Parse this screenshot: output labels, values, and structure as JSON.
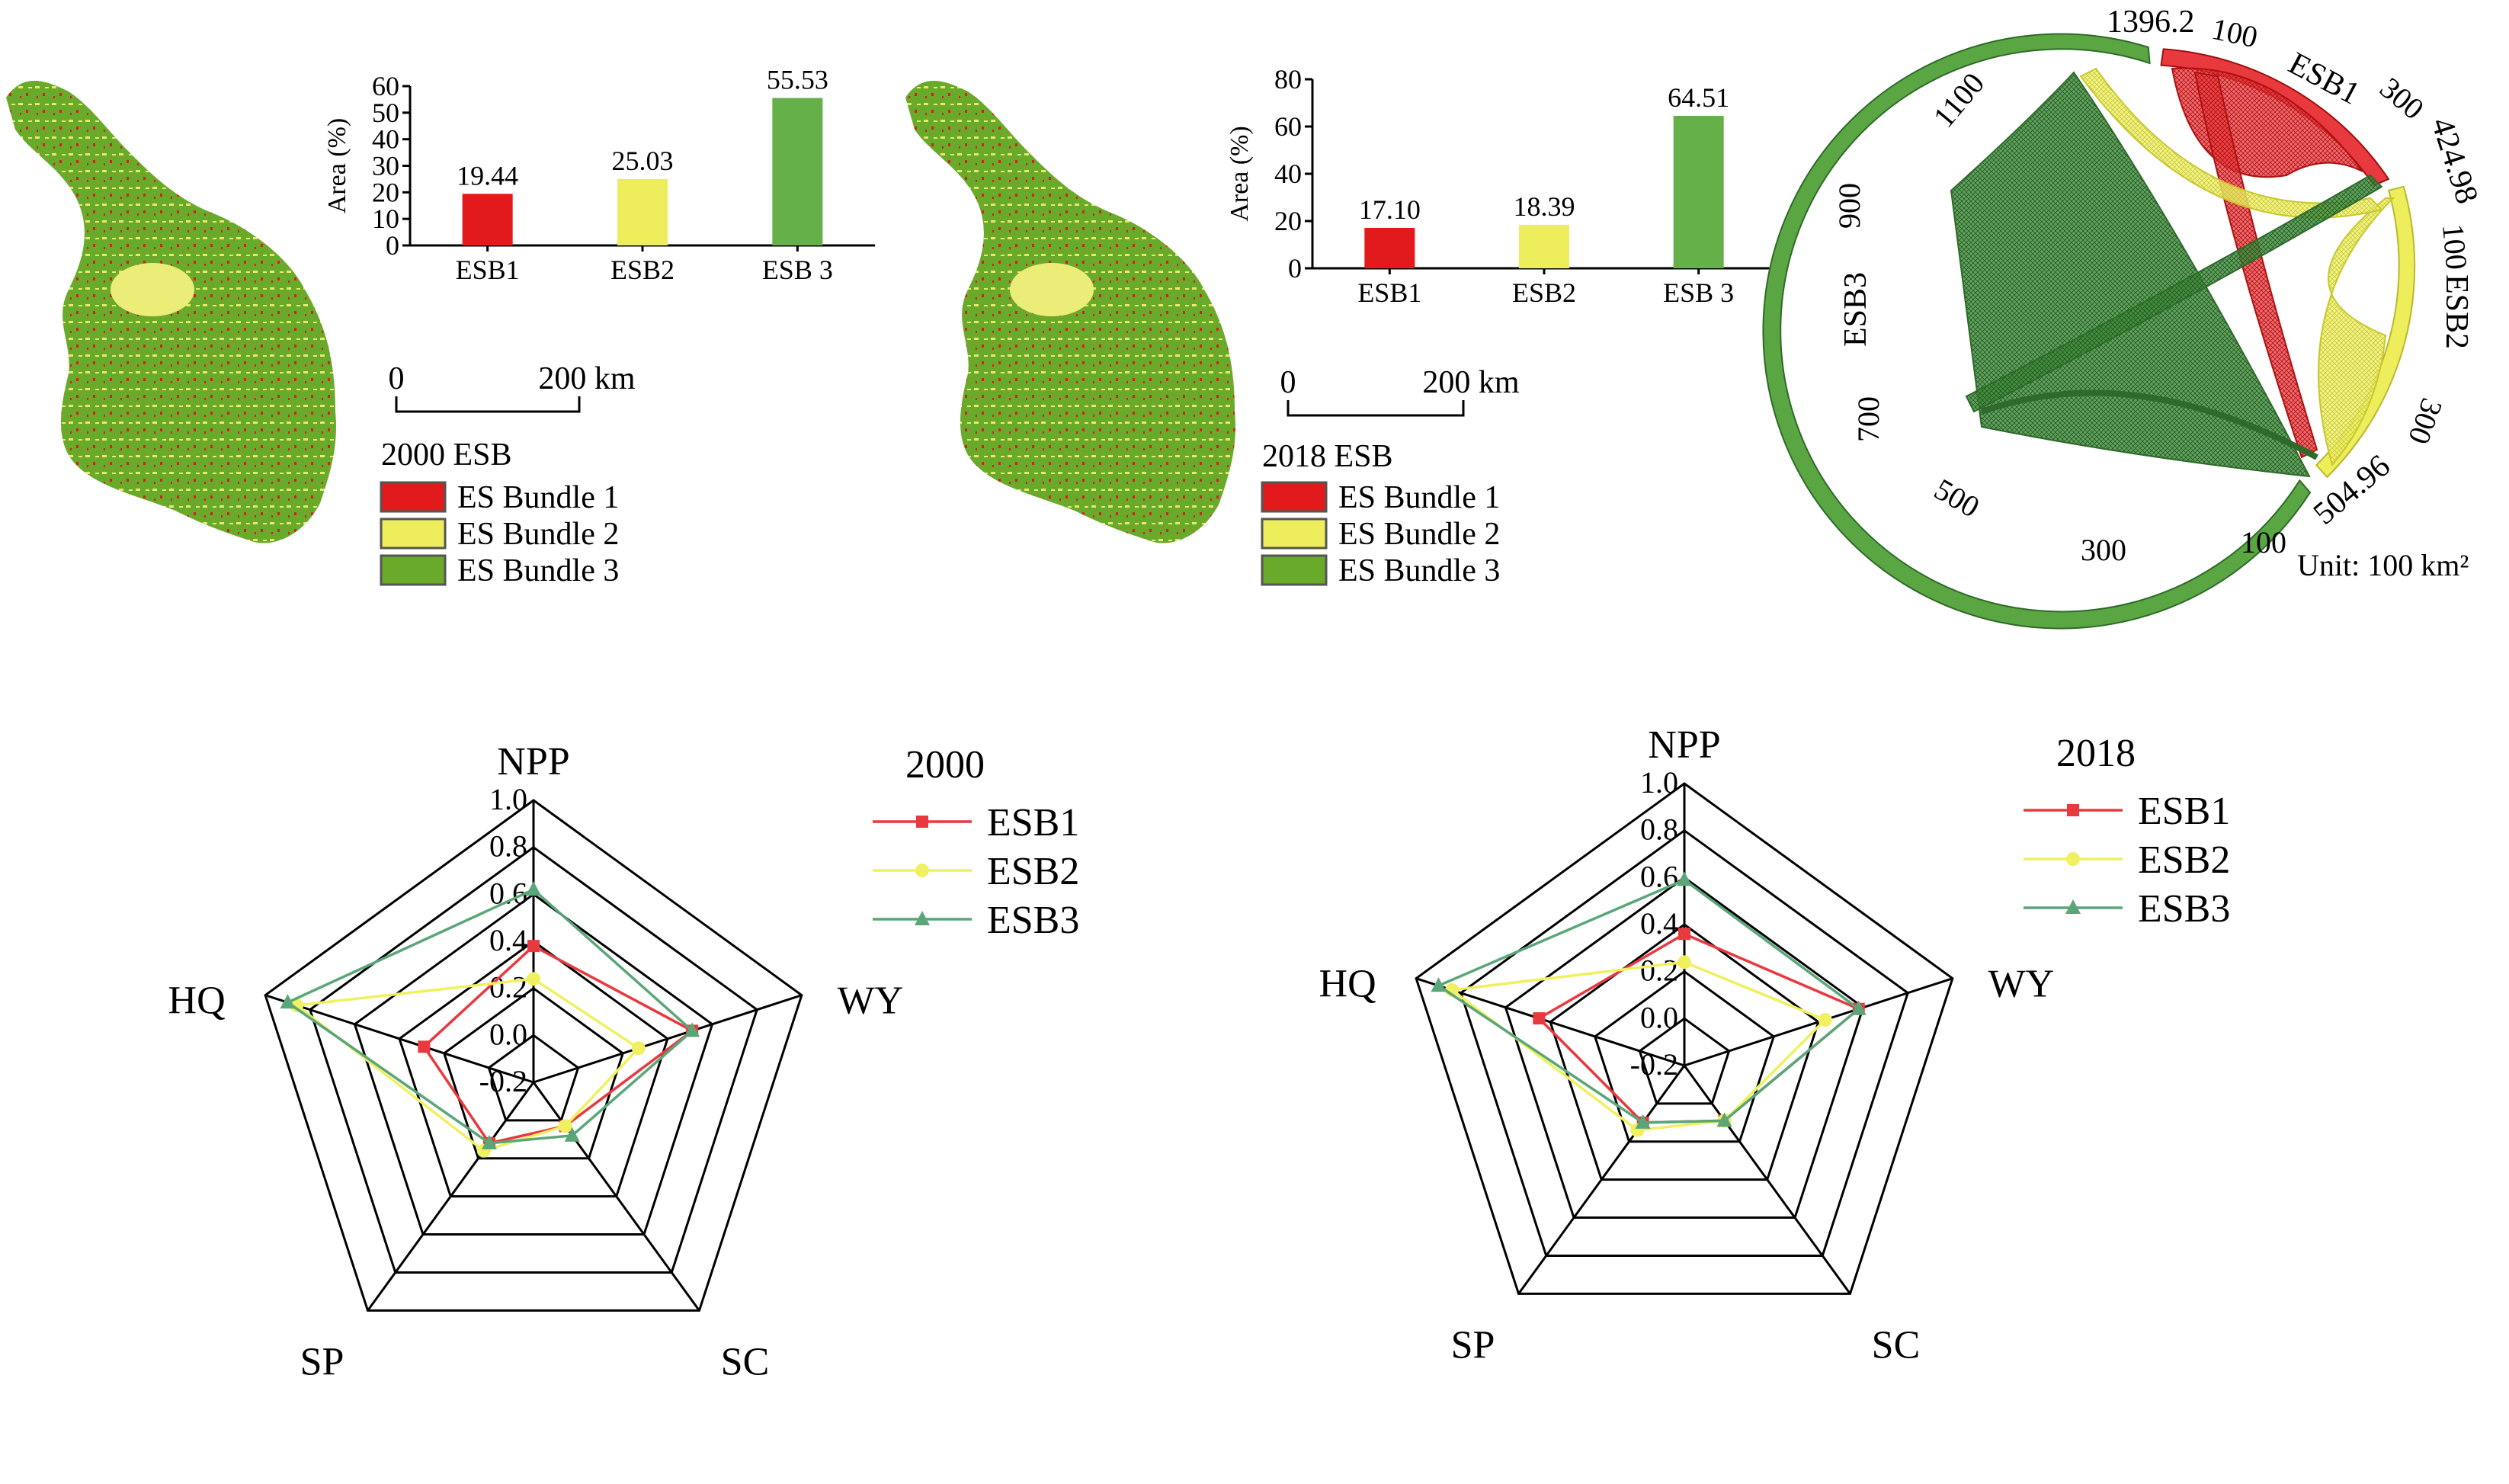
{
  "colors": {
    "esb1": "#e31a1c",
    "esb2": "#eeee5c",
    "esb3": "#66b04a",
    "map_green": "#6aaa2a",
    "radar_esb1": "#e8393f",
    "radar_esb2": "#f0f060",
    "radar_esb3": "#5aa678"
  },
  "maps": [
    {
      "year_label": "2000 ESB",
      "legend": [
        "ES Bundle 1",
        "ES Bundle 2",
        "ES Bundle 3"
      ],
      "scalebar": {
        "start": "0",
        "end": "200 km"
      }
    },
    {
      "year_label": "2018 ESB",
      "legend": [
        "ES Bundle 1",
        "ES Bundle 2",
        "ES Bundle 3"
      ],
      "scalebar": {
        "start": "0",
        "end": "200 km"
      }
    }
  ],
  "chord": {
    "unit": "Unit: 100 km²",
    "groups": [
      {
        "name": "ESB1",
        "total_label": "424.98",
        "ticks": [
          "100",
          "300"
        ]
      },
      {
        "name": "ESB2",
        "total_label": "504.96",
        "ticks": [
          "100",
          "300"
        ]
      },
      {
        "name": "ESB3",
        "total_label": "1396.2",
        "ticks": [
          "100",
          "300",
          "500",
          "700",
          "900",
          "1100"
        ]
      }
    ]
  },
  "chart_data": [
    {
      "type": "bar",
      "categories": [
        "ESB1",
        "ESB2",
        "ESB 3"
      ],
      "values": [
        19.44,
        25.03,
        55.53
      ],
      "value_labels": [
        "19.44",
        "25.03",
        "55.53"
      ],
      "ylabel": "Area (%)",
      "ylim": [
        0,
        60
      ],
      "yticks": [
        0,
        10,
        20,
        30,
        40,
        50,
        60
      ]
    },
    {
      "type": "bar",
      "categories": [
        "ESB1",
        "ESB2",
        "ESB 3"
      ],
      "values": [
        17.1,
        18.39,
        64.51
      ],
      "value_labels": [
        "17.10",
        "18.39",
        "64.51"
      ],
      "ylabel": "Area (%)",
      "ylim": [
        0,
        80
      ],
      "yticks": [
        0,
        20,
        40,
        60,
        80
      ]
    },
    {
      "type": "radar",
      "legend_title": "2000",
      "axes": [
        "NPP",
        "WY",
        "SC",
        "SP",
        "HQ"
      ],
      "rlim": [
        -0.2,
        1.0
      ],
      "rticks": [
        "-0.2",
        "0.0",
        "0.2",
        "0.4",
        "0.6",
        "0.8",
        "1.0"
      ],
      "series": [
        {
          "name": "ESB1",
          "values": [
            0.38,
            0.51,
            0.03,
            0.12,
            0.29
          ]
        },
        {
          "name": "ESB2",
          "values": [
            0.24,
            0.27,
            0.03,
            0.16,
            0.86
          ]
        },
        {
          "name": "ESB3",
          "values": [
            0.62,
            0.51,
            0.08,
            0.12,
            0.9
          ]
        }
      ]
    },
    {
      "type": "radar",
      "legend_title": "2018",
      "axes": [
        "NPP",
        "WY",
        "SC",
        "SP",
        "HQ"
      ],
      "rlim": [
        -0.2,
        1.0
      ],
      "rticks": [
        "-0.2",
        "0.0",
        "0.2",
        "0.4",
        "0.6",
        "0.8",
        "1.0"
      ],
      "series": [
        {
          "name": "ESB1",
          "values": [
            0.36,
            0.58,
            0.09,
            0.1,
            0.45
          ]
        },
        {
          "name": "ESB2",
          "values": [
            0.24,
            0.43,
            0.09,
            0.14,
            0.84
          ]
        },
        {
          "name": "ESB3",
          "values": [
            0.59,
            0.58,
            0.09,
            0.1,
            0.9
          ]
        }
      ]
    }
  ]
}
